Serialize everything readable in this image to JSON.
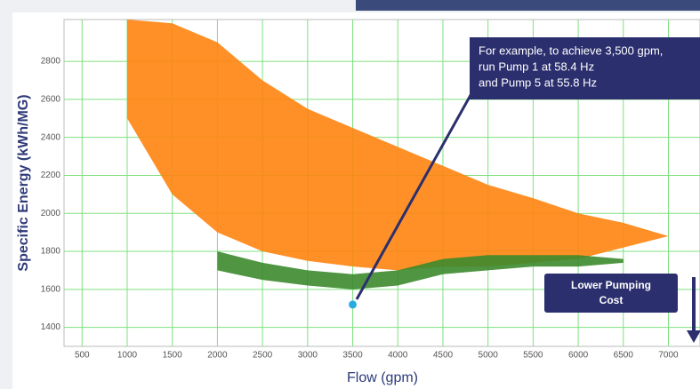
{
  "chart_data": {
    "type": "scatter",
    "y_label": "Specific Energy (kWh/MG)",
    "x_label": "Flow (gpm)",
    "xlim": [
      300,
      7350
    ],
    "ylim": [
      1300,
      3020
    ],
    "xticks": [
      500,
      1000,
      1500,
      2000,
      2500,
      3000,
      3500,
      4000,
      4500,
      5000,
      5500,
      6000,
      6500,
      7000
    ],
    "yticks": [
      1400,
      1600,
      1800,
      2000,
      2200,
      2400,
      2600,
      2800
    ],
    "grid": true,
    "bands": [
      {
        "color": "#ff8410",
        "x": [
          1000,
          1500,
          2000,
          2500,
          3000,
          3500,
          4000,
          4500,
          5000,
          5500,
          6000,
          6500,
          7000
        ],
        "upper": [
          3020,
          3000,
          2900,
          2700,
          2550,
          2450,
          2350,
          2250,
          2150,
          2080,
          2000,
          1950,
          1880
        ],
        "lower": [
          2500,
          2100,
          1900,
          1800,
          1750,
          1720,
          1700,
          1720,
          1720,
          1740,
          1760,
          1820,
          1880
        ]
      },
      {
        "color": "#3c8a2e",
        "x": [
          2000,
          2500,
          3000,
          3500,
          4000,
          4500,
          5000,
          5500,
          6000,
          6500
        ],
        "upper": [
          1800,
          1740,
          1700,
          1680,
          1700,
          1760,
          1780,
          1780,
          1780,
          1760
        ],
        "lower": [
          1700,
          1650,
          1620,
          1600,
          1620,
          1680,
          1700,
          1720,
          1720,
          1740
        ]
      }
    ],
    "highlight": {
      "x": 3500,
      "y": 1520,
      "color": "#29abe2"
    },
    "annotation": [
      "For example, to achieve 3,500 gpm,",
      "run Pump 1 at 58.4 Hz",
      "and Pump 5 at 55.8 Hz"
    ],
    "cost_label": [
      "Lower Pumping",
      "Cost"
    ]
  }
}
